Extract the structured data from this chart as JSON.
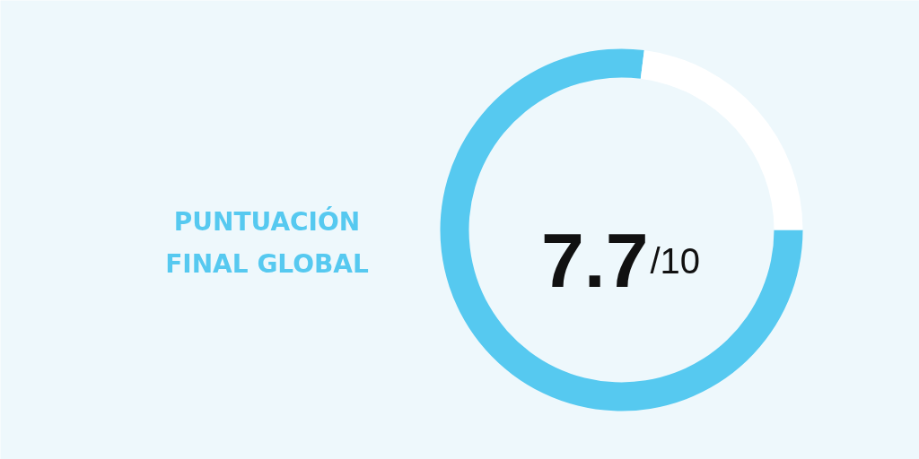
{
  "chart_data": {
    "type": "donut",
    "title": "PUNTUACIÓN FINAL GLOBAL",
    "categories": [
      null,
      null
    ],
    "values": [
      7.7,
      2.3
    ],
    "colors": [
      "#56c9f0",
      "#ffffff"
    ],
    "value_labels": [
      "7.7",
      null
    ],
    "annotations": [
      "/10"
    ]
  }
}
